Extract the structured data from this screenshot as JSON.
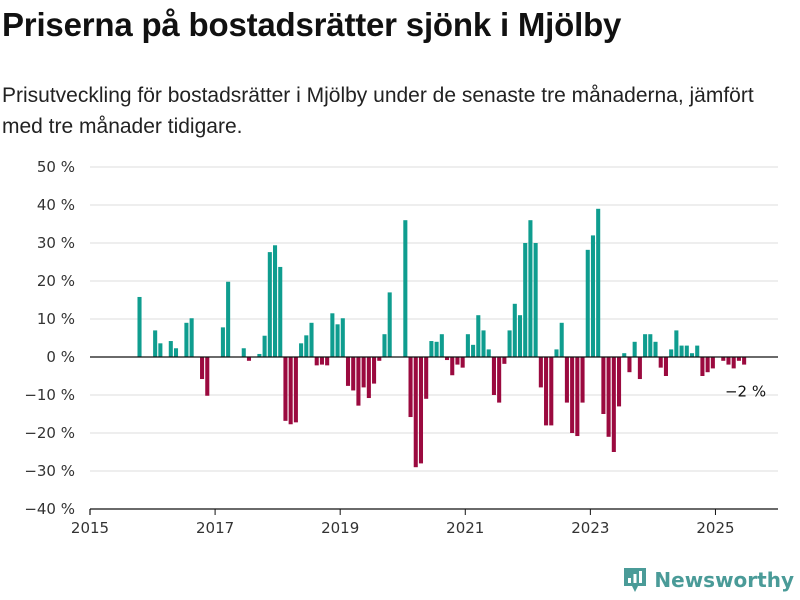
{
  "title": "Priserna på bostadsrätter sjönk i Mjölby",
  "subtitle": "Prisutveckling för bostadsrätter i Mjölby under de senaste tre månaderna, jämfört med tre månader tidigare.",
  "brand": {
    "name": "Newsworthy",
    "color": "#4a9b98"
  },
  "colors": {
    "positive": "#0f9d8f",
    "negative": "#9b0a3f",
    "grid": "#dddddd",
    "axis": "#111111"
  },
  "chart_data": {
    "type": "bar",
    "title": "Priserna på bostadsrätter sjönk i Mjölby",
    "xlabel": "",
    "ylabel": "",
    "xlim": [
      2015,
      2026
    ],
    "ylim": [
      -40,
      50
    ],
    "x_ticks": [
      2015,
      2017,
      2019,
      2021,
      2023,
      2025
    ],
    "x_tick_labels": [
      "2015",
      "2017",
      "2019",
      "2021",
      "2023",
      "2025"
    ],
    "y_ticks": [
      -40,
      -30,
      -20,
      -10,
      0,
      10,
      20,
      30,
      40,
      50
    ],
    "y_tick_labels": [
      "−40 %",
      "−30 %",
      "−20 %",
      "−10 %",
      "0 %",
      "10 %",
      "20 %",
      "30 %",
      "40 %",
      "50 %"
    ],
    "grid": "horizontal",
    "annotation": {
      "text": "−2 %",
      "x": "2025-06",
      "y": -2
    },
    "values": [
      [
        "2015-10",
        15.8
      ],
      [
        "2016-01",
        7.0
      ],
      [
        "2016-02",
        3.6
      ],
      [
        "2016-04",
        4.2
      ],
      [
        "2016-05",
        2.3
      ],
      [
        "2016-07",
        9.0
      ],
      [
        "2016-08",
        10.2
      ],
      [
        "2016-10",
        -5.8
      ],
      [
        "2016-11",
        -10.2
      ],
      [
        "2017-02",
        7.8
      ],
      [
        "2017-03",
        19.8
      ],
      [
        "2017-06",
        2.3
      ],
      [
        "2017-07",
        -1.0
      ],
      [
        "2017-09",
        0.8
      ],
      [
        "2017-10",
        5.6
      ],
      [
        "2017-11",
        27.6
      ],
      [
        "2017-12",
        29.4
      ],
      [
        "2018-01",
        23.7
      ],
      [
        "2018-02",
        -16.8
      ],
      [
        "2018-03",
        -17.7
      ],
      [
        "2018-04",
        -17.2
      ],
      [
        "2018-05",
        3.6
      ],
      [
        "2018-06",
        5.7
      ],
      [
        "2018-07",
        9.0
      ],
      [
        "2018-08",
        -2.2
      ],
      [
        "2018-09",
        -2.0
      ],
      [
        "2018-10",
        -2.2
      ],
      [
        "2018-11",
        11.5
      ],
      [
        "2018-12",
        8.6
      ],
      [
        "2019-01",
        10.2
      ],
      [
        "2019-02",
        -7.6
      ],
      [
        "2019-03",
        -8.8
      ],
      [
        "2019-04",
        -12.8
      ],
      [
        "2019-05",
        -8.0
      ],
      [
        "2019-06",
        -10.8
      ],
      [
        "2019-07",
        -7.0
      ],
      [
        "2019-08",
        -1.0
      ],
      [
        "2019-09",
        6.0
      ],
      [
        "2019-10",
        17.0
      ],
      [
        "2020-01",
        36.0
      ],
      [
        "2020-02",
        -15.8
      ],
      [
        "2020-03",
        -29.0
      ],
      [
        "2020-04",
        -28.0
      ],
      [
        "2020-05",
        -11.0
      ],
      [
        "2020-06",
        4.2
      ],
      [
        "2020-07",
        4.0
      ],
      [
        "2020-08",
        6.0
      ],
      [
        "2020-09",
        -0.8
      ],
      [
        "2020-10",
        -4.8
      ],
      [
        "2020-11",
        -2.0
      ],
      [
        "2020-12",
        -2.8
      ],
      [
        "2021-01",
        6.0
      ],
      [
        "2021-02",
        3.2
      ],
      [
        "2021-03",
        11.0
      ],
      [
        "2021-04",
        7.0
      ],
      [
        "2021-05",
        2.0
      ],
      [
        "2021-06",
        -10.0
      ],
      [
        "2021-07",
        -12.0
      ],
      [
        "2021-08",
        -1.8
      ],
      [
        "2021-09",
        7.0
      ],
      [
        "2021-10",
        14.0
      ],
      [
        "2021-11",
        11.0
      ],
      [
        "2021-12",
        30.0
      ],
      [
        "2022-01",
        36.0
      ],
      [
        "2022-02",
        30.0
      ],
      [
        "2022-03",
        -8.0
      ],
      [
        "2022-04",
        -18.0
      ],
      [
        "2022-05",
        -18.0
      ],
      [
        "2022-06",
        2.0
      ],
      [
        "2022-07",
        9.0
      ],
      [
        "2022-08",
        -12.0
      ],
      [
        "2022-09",
        -20.0
      ],
      [
        "2022-10",
        -20.8
      ],
      [
        "2022-11",
        -12.0
      ],
      [
        "2022-12",
        28.2
      ],
      [
        "2023-01",
        32.0
      ],
      [
        "2023-02",
        39.0
      ],
      [
        "2023-03",
        -15.0
      ],
      [
        "2023-04",
        -21.0
      ],
      [
        "2023-05",
        -25.0
      ],
      [
        "2023-06",
        -13.0
      ],
      [
        "2023-07",
        1.0
      ],
      [
        "2023-08",
        -4.0
      ],
      [
        "2023-09",
        4.0
      ],
      [
        "2023-10",
        -5.8
      ],
      [
        "2023-11",
        6.0
      ],
      [
        "2023-12",
        6.0
      ],
      [
        "2024-01",
        4.0
      ],
      [
        "2024-02",
        -2.8
      ],
      [
        "2024-03",
        -5.0
      ],
      [
        "2024-04",
        2.0
      ],
      [
        "2024-05",
        7.0
      ],
      [
        "2024-06",
        3.0
      ],
      [
        "2024-07",
        3.0
      ],
      [
        "2024-08",
        1.0
      ],
      [
        "2024-09",
        3.0
      ],
      [
        "2024-10",
        -5.0
      ],
      [
        "2024-11",
        -4.0
      ],
      [
        "2024-12",
        -3.0
      ],
      [
        "2025-02",
        -1.0
      ],
      [
        "2025-03",
        -2.0
      ],
      [
        "2025-04",
        -3.0
      ],
      [
        "2025-05",
        -1.0
      ],
      [
        "2025-06",
        -2.0
      ]
    ]
  }
}
